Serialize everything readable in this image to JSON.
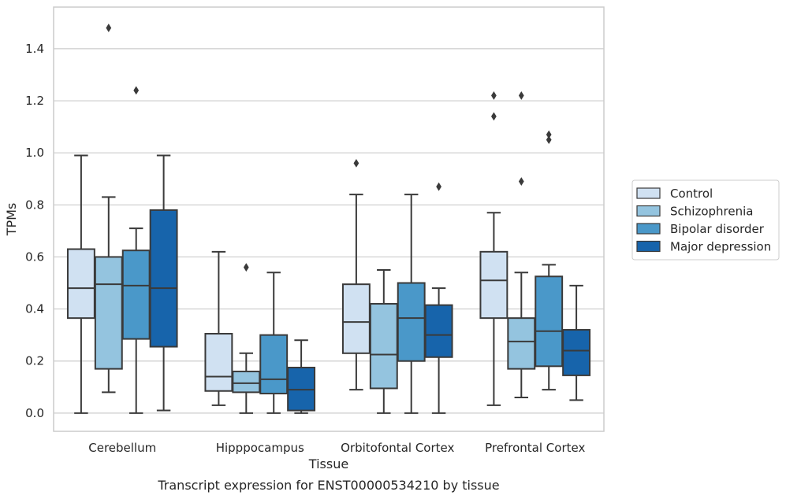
{
  "caption": "Transcript expression for ENST00000534210 by tissue",
  "chart_data": {
    "type": "box",
    "xlabel": "Tissue",
    "ylabel": "TPMs",
    "ylim": [
      -0.07,
      1.56
    ],
    "yticks": [
      "0.0",
      "0.2",
      "0.4",
      "0.6",
      "0.8",
      "1.0",
      "1.2",
      "1.4"
    ],
    "ytick_values": [
      0.0,
      0.2,
      0.4,
      0.6,
      0.8,
      1.0,
      1.2,
      1.4
    ],
    "grid": "horizontal",
    "legend_position": "right",
    "categories": [
      "Cerebellum",
      "Hipppocampus",
      "Orbitofontal Cortex",
      "Prefrontal Cortex"
    ],
    "series": [
      {
        "name": "Control",
        "color": "#d0e1f2",
        "boxes": [
          {
            "whislo": 0.0,
            "q1": 0.365,
            "med": 0.48,
            "q3": 0.63,
            "whishi": 0.99,
            "fliers": []
          },
          {
            "whislo": 0.03,
            "q1": 0.085,
            "med": 0.14,
            "q3": 0.305,
            "whishi": 0.62,
            "fliers": []
          },
          {
            "whislo": 0.09,
            "q1": 0.23,
            "med": 0.35,
            "q3": 0.495,
            "whishi": 0.84,
            "fliers": [
              0.96
            ]
          },
          {
            "whislo": 0.03,
            "q1": 0.365,
            "med": 0.51,
            "q3": 0.62,
            "whishi": 0.77,
            "fliers": [
              1.14,
              1.22
            ]
          }
        ]
      },
      {
        "name": "Schizophrenia",
        "color": "#94c4df",
        "boxes": [
          {
            "whislo": 0.08,
            "q1": 0.17,
            "med": 0.495,
            "q3": 0.6,
            "whishi": 0.83,
            "fliers": [
              1.48
            ]
          },
          {
            "whislo": 0.0,
            "q1": 0.08,
            "med": 0.115,
            "q3": 0.16,
            "whishi": 0.23,
            "fliers": [
              0.56
            ]
          },
          {
            "whislo": 0.0,
            "q1": 0.095,
            "med": 0.225,
            "q3": 0.42,
            "whishi": 0.55,
            "fliers": []
          },
          {
            "whislo": 0.06,
            "q1": 0.17,
            "med": 0.275,
            "q3": 0.365,
            "whishi": 0.54,
            "fliers": [
              0.89,
              1.22
            ]
          }
        ]
      },
      {
        "name": "Bipolar disorder",
        "color": "#4a98c9",
        "boxes": [
          {
            "whislo": 0.0,
            "q1": 0.285,
            "med": 0.49,
            "q3": 0.625,
            "whishi": 0.71,
            "fliers": [
              1.24
            ]
          },
          {
            "whislo": 0.0,
            "q1": 0.075,
            "med": 0.13,
            "q3": 0.3,
            "whishi": 0.54,
            "fliers": []
          },
          {
            "whislo": 0.0,
            "q1": 0.2,
            "med": 0.365,
            "q3": 0.5,
            "whishi": 0.84,
            "fliers": []
          },
          {
            "whislo": 0.09,
            "q1": 0.18,
            "med": 0.315,
            "q3": 0.525,
            "whishi": 0.57,
            "fliers": [
              1.05,
              1.07
            ]
          }
        ]
      },
      {
        "name": "Major depression",
        "color": "#1764ab",
        "boxes": [
          {
            "whislo": 0.01,
            "q1": 0.255,
            "med": 0.48,
            "q3": 0.78,
            "whishi": 0.99,
            "fliers": []
          },
          {
            "whislo": 0.0,
            "q1": 0.01,
            "med": 0.09,
            "q3": 0.175,
            "whishi": 0.28,
            "fliers": []
          },
          {
            "whislo": 0.0,
            "q1": 0.215,
            "med": 0.3,
            "q3": 0.415,
            "whishi": 0.48,
            "fliers": [
              0.87
            ]
          },
          {
            "whislo": 0.05,
            "q1": 0.145,
            "med": 0.24,
            "q3": 0.32,
            "whishi": 0.49,
            "fliers": []
          }
        ]
      }
    ]
  }
}
